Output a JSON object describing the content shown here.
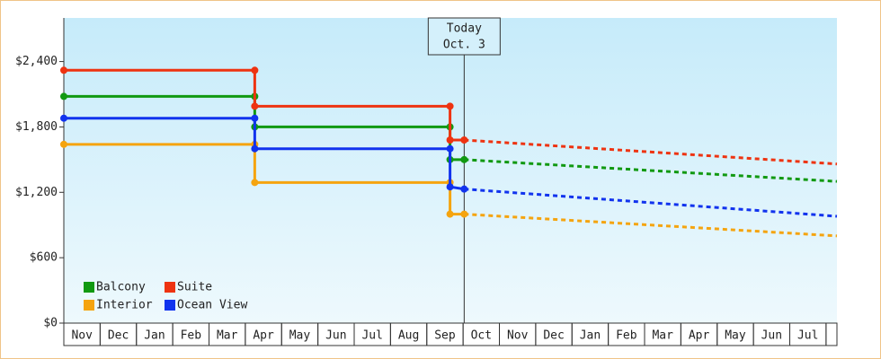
{
  "chart_data": {
    "type": "line",
    "x": [
      0,
      5.26,
      5.26,
      10.64,
      10.64,
      11.03,
      21.3
    ],
    "xlim": [
      0,
      21.3
    ],
    "categories": [
      "Nov",
      "Dec",
      "Jan",
      "Feb",
      "Mar",
      "Apr",
      "May",
      "Jun",
      "Jul",
      "Aug",
      "Sep",
      "Oct",
      "Nov",
      "Dec",
      "Jan",
      "Feb",
      "Mar",
      "Apr",
      "May",
      "Jun",
      "Jul"
    ],
    "ylim": [
      0,
      2800
    ],
    "yticks": [
      {
        "value": 0,
        "label": "$0"
      },
      {
        "value": 600,
        "label": "$600"
      },
      {
        "value": 1200,
        "label": "$1,200"
      },
      {
        "value": 1800,
        "label": "$1,800"
      },
      {
        "value": 2400,
        "label": "$2,400"
      }
    ],
    "today": {
      "x": 11.03,
      "label": [
        "Today",
        "Oct. 3"
      ]
    },
    "legend": "bottom-left",
    "series": [
      {
        "name": "Balcony",
        "color": "#119911",
        "values": [
          2080,
          2080,
          1800,
          1800,
          1500,
          1500,
          1300
        ]
      },
      {
        "name": "Suite",
        "color": "#ee3311",
        "values": [
          2320,
          2320,
          1990,
          1990,
          1680,
          1680,
          1460
        ]
      },
      {
        "name": "Interior",
        "color": "#f5a40f",
        "values": [
          1640,
          1640,
          1290,
          1290,
          1000,
          1000,
          800
        ]
      },
      {
        "name": "Ocean View",
        "color": "#1133ee",
        "values": [
          1880,
          1880,
          1600,
          1600,
          1250,
          1230,
          980
        ]
      }
    ]
  }
}
